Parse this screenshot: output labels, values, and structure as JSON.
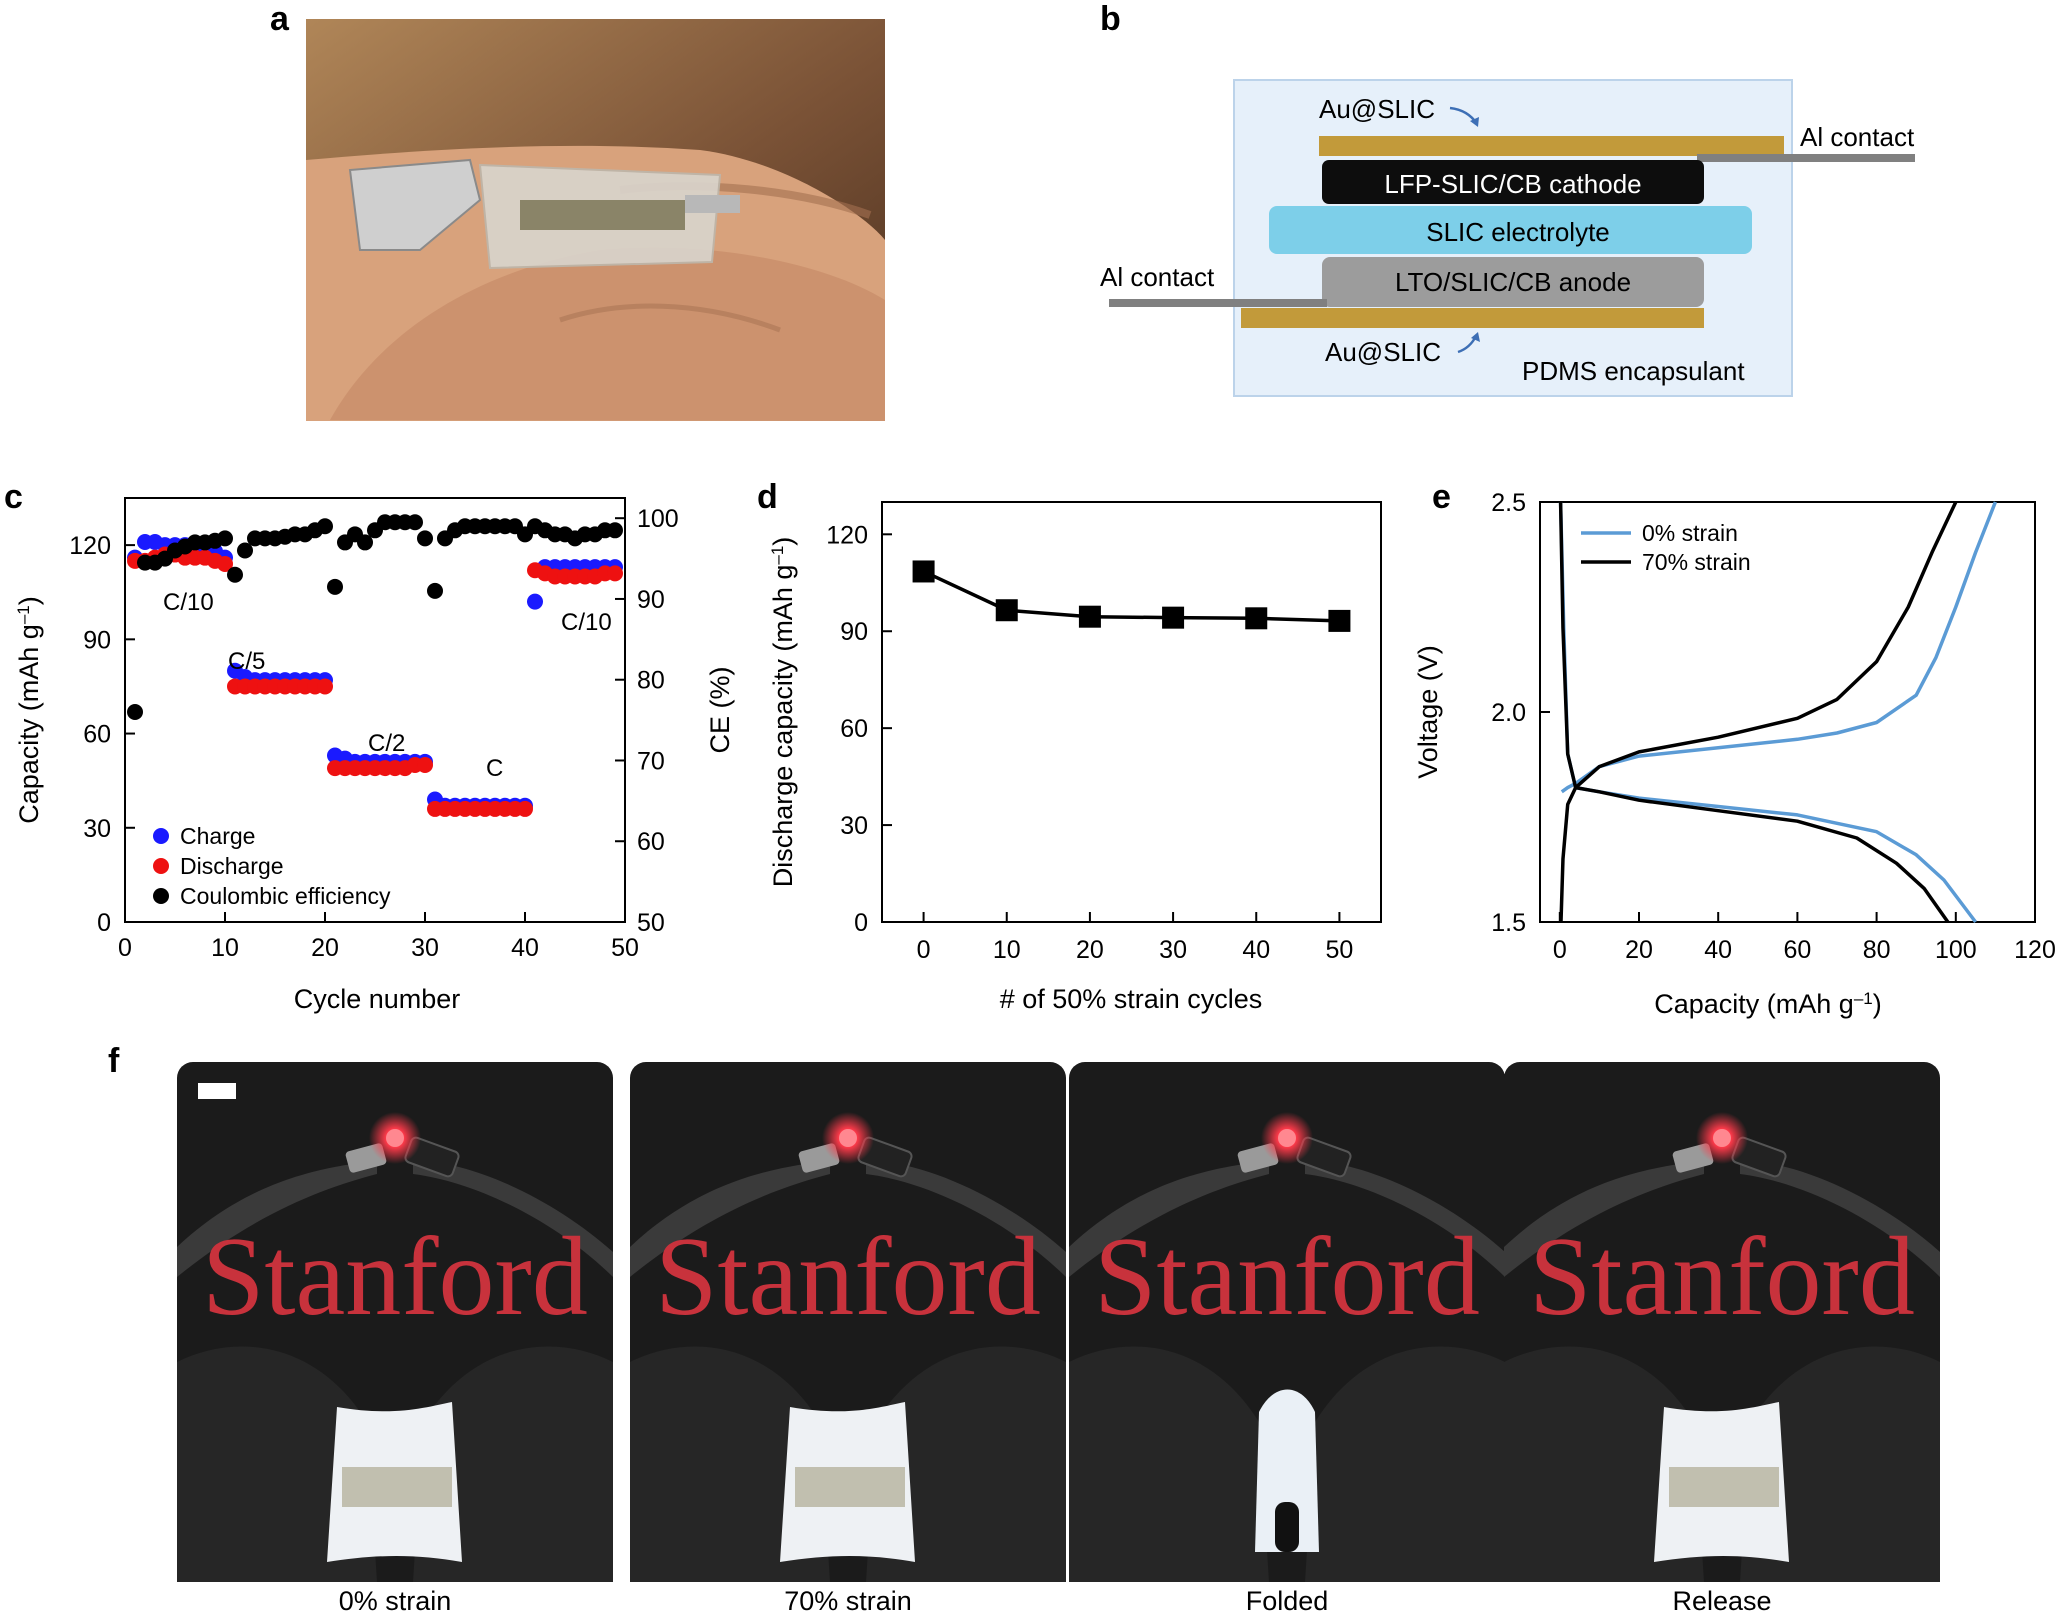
{
  "panels": {
    "a": "a",
    "b": "b",
    "c": "c",
    "d": "d",
    "e": "e",
    "f": "f"
  },
  "diagram_b": {
    "layers": {
      "au_top": "Au@SLIC",
      "al_right": "Al contact",
      "cathode": "LFP-SLIC/CB cathode",
      "electrolyte": "SLIC electrolyte",
      "al_left": "Al contact",
      "anode": "LTO/SLIC/CB anode",
      "au_bottom": "Au@SLIC",
      "encapsulant": "PDMS encapsulant"
    },
    "colors": {
      "au": "#c29a3a",
      "cathode": "#0d0d0d",
      "electrolyte": "#7dcfe9",
      "anode": "#9c9c9c",
      "encaps": "#e6f0fa",
      "al": "#808080"
    }
  },
  "chart_c": {
    "xlabel": "Cycle number",
    "ylabel_left": "Capacity (mAh g",
    "ylabel_left_sup": "–1",
    "ylabel_left_end": ")",
    "ylabel_right": "CE (%)",
    "xticks": [
      "0",
      "10",
      "20",
      "30",
      "40",
      "50"
    ],
    "yticks_left": [
      "0",
      "30",
      "60",
      "90",
      "120"
    ],
    "yticks_right": [
      "50",
      "60",
      "70",
      "80",
      "90",
      "100"
    ],
    "rate_labels": [
      "C/10",
      "C/5",
      "C/2",
      "C",
      "C/10"
    ],
    "legend": [
      "Charge",
      "Discharge",
      "Coulombic efficiency"
    ]
  },
  "chart_d": {
    "xlabel": "# of 50% strain cycles",
    "ylabel": "Discharge capacity (mAh g",
    "ylabel_sup": "–1",
    "ylabel_end": ")",
    "xticks": [
      "0",
      "10",
      "20",
      "30",
      "40",
      "50"
    ],
    "yticks": [
      "0",
      "30",
      "60",
      "90",
      "120"
    ]
  },
  "chart_e": {
    "xlabel": "Capacity (mAh g",
    "xlabel_sup": "–1",
    "xlabel_end": ")",
    "ylabel": "Voltage (V)",
    "xticks": [
      "0",
      "20",
      "40",
      "60",
      "80",
      "100",
      "120"
    ],
    "yticks": [
      "1.5",
      "2.0",
      "2.5"
    ],
    "legend": [
      "0% strain",
      "70% strain"
    ]
  },
  "photos_f": {
    "captions": [
      "0% strain",
      "70% strain",
      "Folded",
      "Release"
    ],
    "logo_text": "Stanford"
  },
  "chart_data": [
    {
      "type": "scatter",
      "xlabel": "Cycle number",
      "ylabel": "Capacity (mAh g–1)",
      "y2label": "CE (%)",
      "xlim": [
        0,
        50
      ],
      "ylim": [
        0,
        135
      ],
      "y2lim": [
        50,
        102.5
      ],
      "series": [
        {
          "name": "Charge",
          "color": "#1a1aff",
          "x": [
            1,
            2,
            3,
            4,
            5,
            6,
            7,
            8,
            9,
            10,
            11,
            12,
            13,
            14,
            15,
            16,
            17,
            18,
            19,
            20,
            21,
            22,
            23,
            24,
            25,
            26,
            27,
            28,
            29,
            30,
            31,
            32,
            33,
            34,
            35,
            36,
            37,
            38,
            39,
            40,
            41,
            42,
            43,
            44,
            45,
            46,
            47,
            48,
            49
          ],
          "y": [
            116,
            121,
            121,
            120,
            120,
            120,
            119,
            118,
            118,
            116,
            80,
            78,
            77,
            77,
            77,
            77,
            77,
            77,
            77,
            77,
            53,
            52,
            51,
            51,
            51,
            51,
            51,
            51,
            51,
            51,
            39,
            37,
            37,
            37,
            37,
            37,
            37,
            37,
            37,
            37,
            102,
            113,
            113,
            113,
            113,
            113,
            113,
            113,
            113
          ]
        },
        {
          "name": "Discharge",
          "color": "#ee1111",
          "x": [
            1,
            2,
            3,
            4,
            5,
            6,
            7,
            8,
            9,
            10,
            11,
            12,
            13,
            14,
            15,
            16,
            17,
            18,
            19,
            20,
            21,
            22,
            23,
            24,
            25,
            26,
            27,
            28,
            29,
            30,
            31,
            32,
            33,
            34,
            35,
            36,
            37,
            38,
            39,
            40,
            41,
            42,
            43,
            44,
            45,
            46,
            47,
            48,
            49
          ],
          "y": [
            115,
            115,
            116,
            117,
            117,
            116,
            116,
            116,
            115,
            114,
            75,
            75,
            75,
            75,
            75,
            75,
            75,
            75,
            75,
            75,
            49,
            49,
            49,
            49,
            49,
            49,
            49,
            49,
            50,
            50,
            36,
            36,
            36,
            36,
            36,
            36,
            36,
            36,
            36,
            36,
            112,
            111,
            110,
            110,
            110,
            110,
            110,
            111,
            111
          ]
        },
        {
          "name": "Coulombic efficiency",
          "color": "#000000",
          "x": [
            1,
            2,
            3,
            4,
            5,
            6,
            7,
            8,
            9,
            10,
            11,
            12,
            13,
            14,
            15,
            16,
            17,
            18,
            19,
            20,
            21,
            22,
            23,
            24,
            25,
            26,
            27,
            28,
            29,
            30,
            31,
            32,
            33,
            34,
            35,
            36,
            37,
            38,
            39,
            40,
            41,
            42,
            43,
            44,
            45,
            46,
            47,
            48,
            49
          ],
          "y": [
            76,
            94.5,
            94.5,
            95,
            96,
            96.5,
            97,
            97,
            97.2,
            97.5,
            93,
            96,
            97.5,
            97.5,
            97.5,
            97.7,
            98,
            98,
            98.5,
            99,
            91.5,
            97,
            98,
            97,
            98.5,
            99.5,
            99.5,
            99.5,
            99.5,
            97.5,
            91,
            97.5,
            98.5,
            99,
            99,
            99,
            99,
            99,
            99,
            98,
            99,
            98.5,
            98,
            98,
            97.5,
            98,
            98,
            98.5,
            98.5
          ]
        }
      ],
      "annotations": [
        "C/10",
        "C/5",
        "C/2",
        "C",
        "C/10"
      ]
    },
    {
      "type": "line",
      "xlabel": "# of 50% strain cycles",
      "ylabel": "Discharge capacity (mAh g–1)",
      "xlim": [
        -5,
        55
      ],
      "ylim": [
        0,
        130
      ],
      "x": [
        0,
        10,
        20,
        30,
        40,
        50
      ],
      "series": [
        {
          "values": [
            108.5,
            96.5,
            94.5,
            94.2,
            94,
            93.2
          ]
        }
      ]
    },
    {
      "type": "line",
      "xlabel": "Capacity (mAh g–1)",
      "ylabel": "Voltage (V)",
      "xlim": [
        -5,
        120
      ],
      "ylim": [
        1.5,
        2.5
      ],
      "series": [
        {
          "name": "0% strain",
          "color": "#5b9bd5",
          "segments": [
            {
              "label": "charge",
              "points": [
                [
                  0.5,
                  1.81
                ],
                [
                  2,
                  1.82
                ],
                [
                  4,
                  1.83
                ],
                [
                  10,
                  1.87
                ],
                [
                  20,
                  1.895
                ],
                [
                  40,
                  1.915
                ],
                [
                  60,
                  1.935
                ],
                [
                  70,
                  1.95
                ],
                [
                  80,
                  1.975
                ],
                [
                  90,
                  2.04
                ],
                [
                  95,
                  2.13
                ],
                [
                  100,
                  2.25
                ],
                [
                  105,
                  2.38
                ],
                [
                  110,
                  2.5
                ]
              ]
            },
            {
              "label": "discharge",
              "points": [
                [
                  0.2,
                  2.5
                ],
                [
                  1,
                  2.2
                ],
                [
                  2,
                  1.9
                ],
                [
                  4,
                  1.82
                ],
                [
                  10,
                  1.81
                ],
                [
                  20,
                  1.795
                ],
                [
                  40,
                  1.775
                ],
                [
                  60,
                  1.755
                ],
                [
                  80,
                  1.715
                ],
                [
                  90,
                  1.66
                ],
                [
                  97,
                  1.6
                ],
                [
                  101,
                  1.55
                ],
                [
                  105,
                  1.5
                ]
              ]
            }
          ]
        },
        {
          "name": "70% strain",
          "color": "#000000",
          "segments": [
            {
              "label": "charge",
              "points": [
                [
                  0.3,
                  1.5
                ],
                [
                  0.8,
                  1.65
                ],
                [
                  2,
                  1.78
                ],
                [
                  4,
                  1.82
                ],
                [
                  10,
                  1.87
                ],
                [
                  20,
                  1.905
                ],
                [
                  40,
                  1.94
                ],
                [
                  60,
                  1.985
                ],
                [
                  70,
                  2.03
                ],
                [
                  80,
                  2.12
                ],
                [
                  88,
                  2.25
                ],
                [
                  94,
                  2.38
                ],
                [
                  100,
                  2.5
                ]
              ]
            },
            {
              "label": "discharge",
              "points": [
                [
                  0.2,
                  2.5
                ],
                [
                  0.8,
                  2.2
                ],
                [
                  2,
                  1.9
                ],
                [
                  4,
                  1.82
                ],
                [
                  10,
                  1.81
                ],
                [
                  20,
                  1.79
                ],
                [
                  40,
                  1.765
                ],
                [
                  60,
                  1.74
                ],
                [
                  75,
                  1.7
                ],
                [
                  85,
                  1.64
                ],
                [
                  92,
                  1.58
                ],
                [
                  98,
                  1.5
                ]
              ]
            }
          ]
        }
      ]
    }
  ]
}
